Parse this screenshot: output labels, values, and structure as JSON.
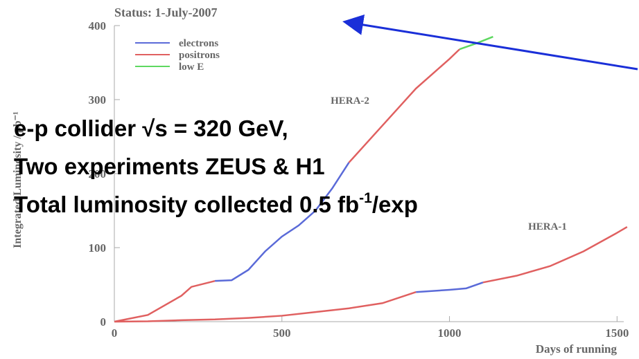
{
  "chart_data": {
    "type": "line",
    "title": "Status: 1-July-2007",
    "x_label": "Days of running",
    "y_label": "Integrated Luminosity / pb⁻¹",
    "annotations": [
      "HERA-2",
      "HERA-1"
    ],
    "xlim": [
      0,
      1520
    ],
    "ylim": [
      0,
      400
    ],
    "xticks": [
      0,
      500,
      1000,
      1500
    ],
    "yticks": [
      0,
      100,
      200,
      300,
      400
    ],
    "legend": "upper left",
    "series": [
      {
        "name": "electrons",
        "color": "#5a6ad8",
        "x": [
          300,
          350,
          400,
          450,
          500,
          550,
          600,
          650,
          700,
          null,
          900,
          1000,
          1050,
          1100
        ],
        "values": [
          55,
          56,
          70,
          95,
          115,
          130,
          150,
          180,
          215,
          null,
          40,
          43,
          45,
          53
        ]
      },
      {
        "name": "positrons",
        "color": "#e06060",
        "x": [
          0,
          100,
          200,
          230,
          300,
          null,
          700,
          750,
          800,
          850,
          900,
          950,
          1000,
          1030,
          null,
          0,
          100,
          200,
          300,
          400,
          500,
          600,
          700,
          800,
          900,
          null,
          1100,
          1200,
          1300,
          1400,
          1500,
          1530
        ],
        "values": [
          0,
          9,
          35,
          47,
          55,
          null,
          215,
          240,
          265,
          290,
          315,
          335,
          355,
          368,
          null,
          0,
          0.5,
          2,
          3,
          5,
          8,
          13,
          18,
          25,
          40,
          null,
          53,
          62,
          75,
          95,
          120,
          128
        ]
      },
      {
        "name": "low E",
        "color": "#5ed860",
        "x": [
          1030,
          1080,
          1130
        ],
        "values": [
          368,
          376,
          385
        ]
      }
    ]
  },
  "slide_text": {
    "line1": "e-p collider √s = 320 GeV,",
    "line2": "Two experiments ZEUS & H1",
    "line3": {
      "text": "Total luminosity collected 0.5 fb",
      "superscript": "-1",
      "suffix": "/exp"
    }
  }
}
